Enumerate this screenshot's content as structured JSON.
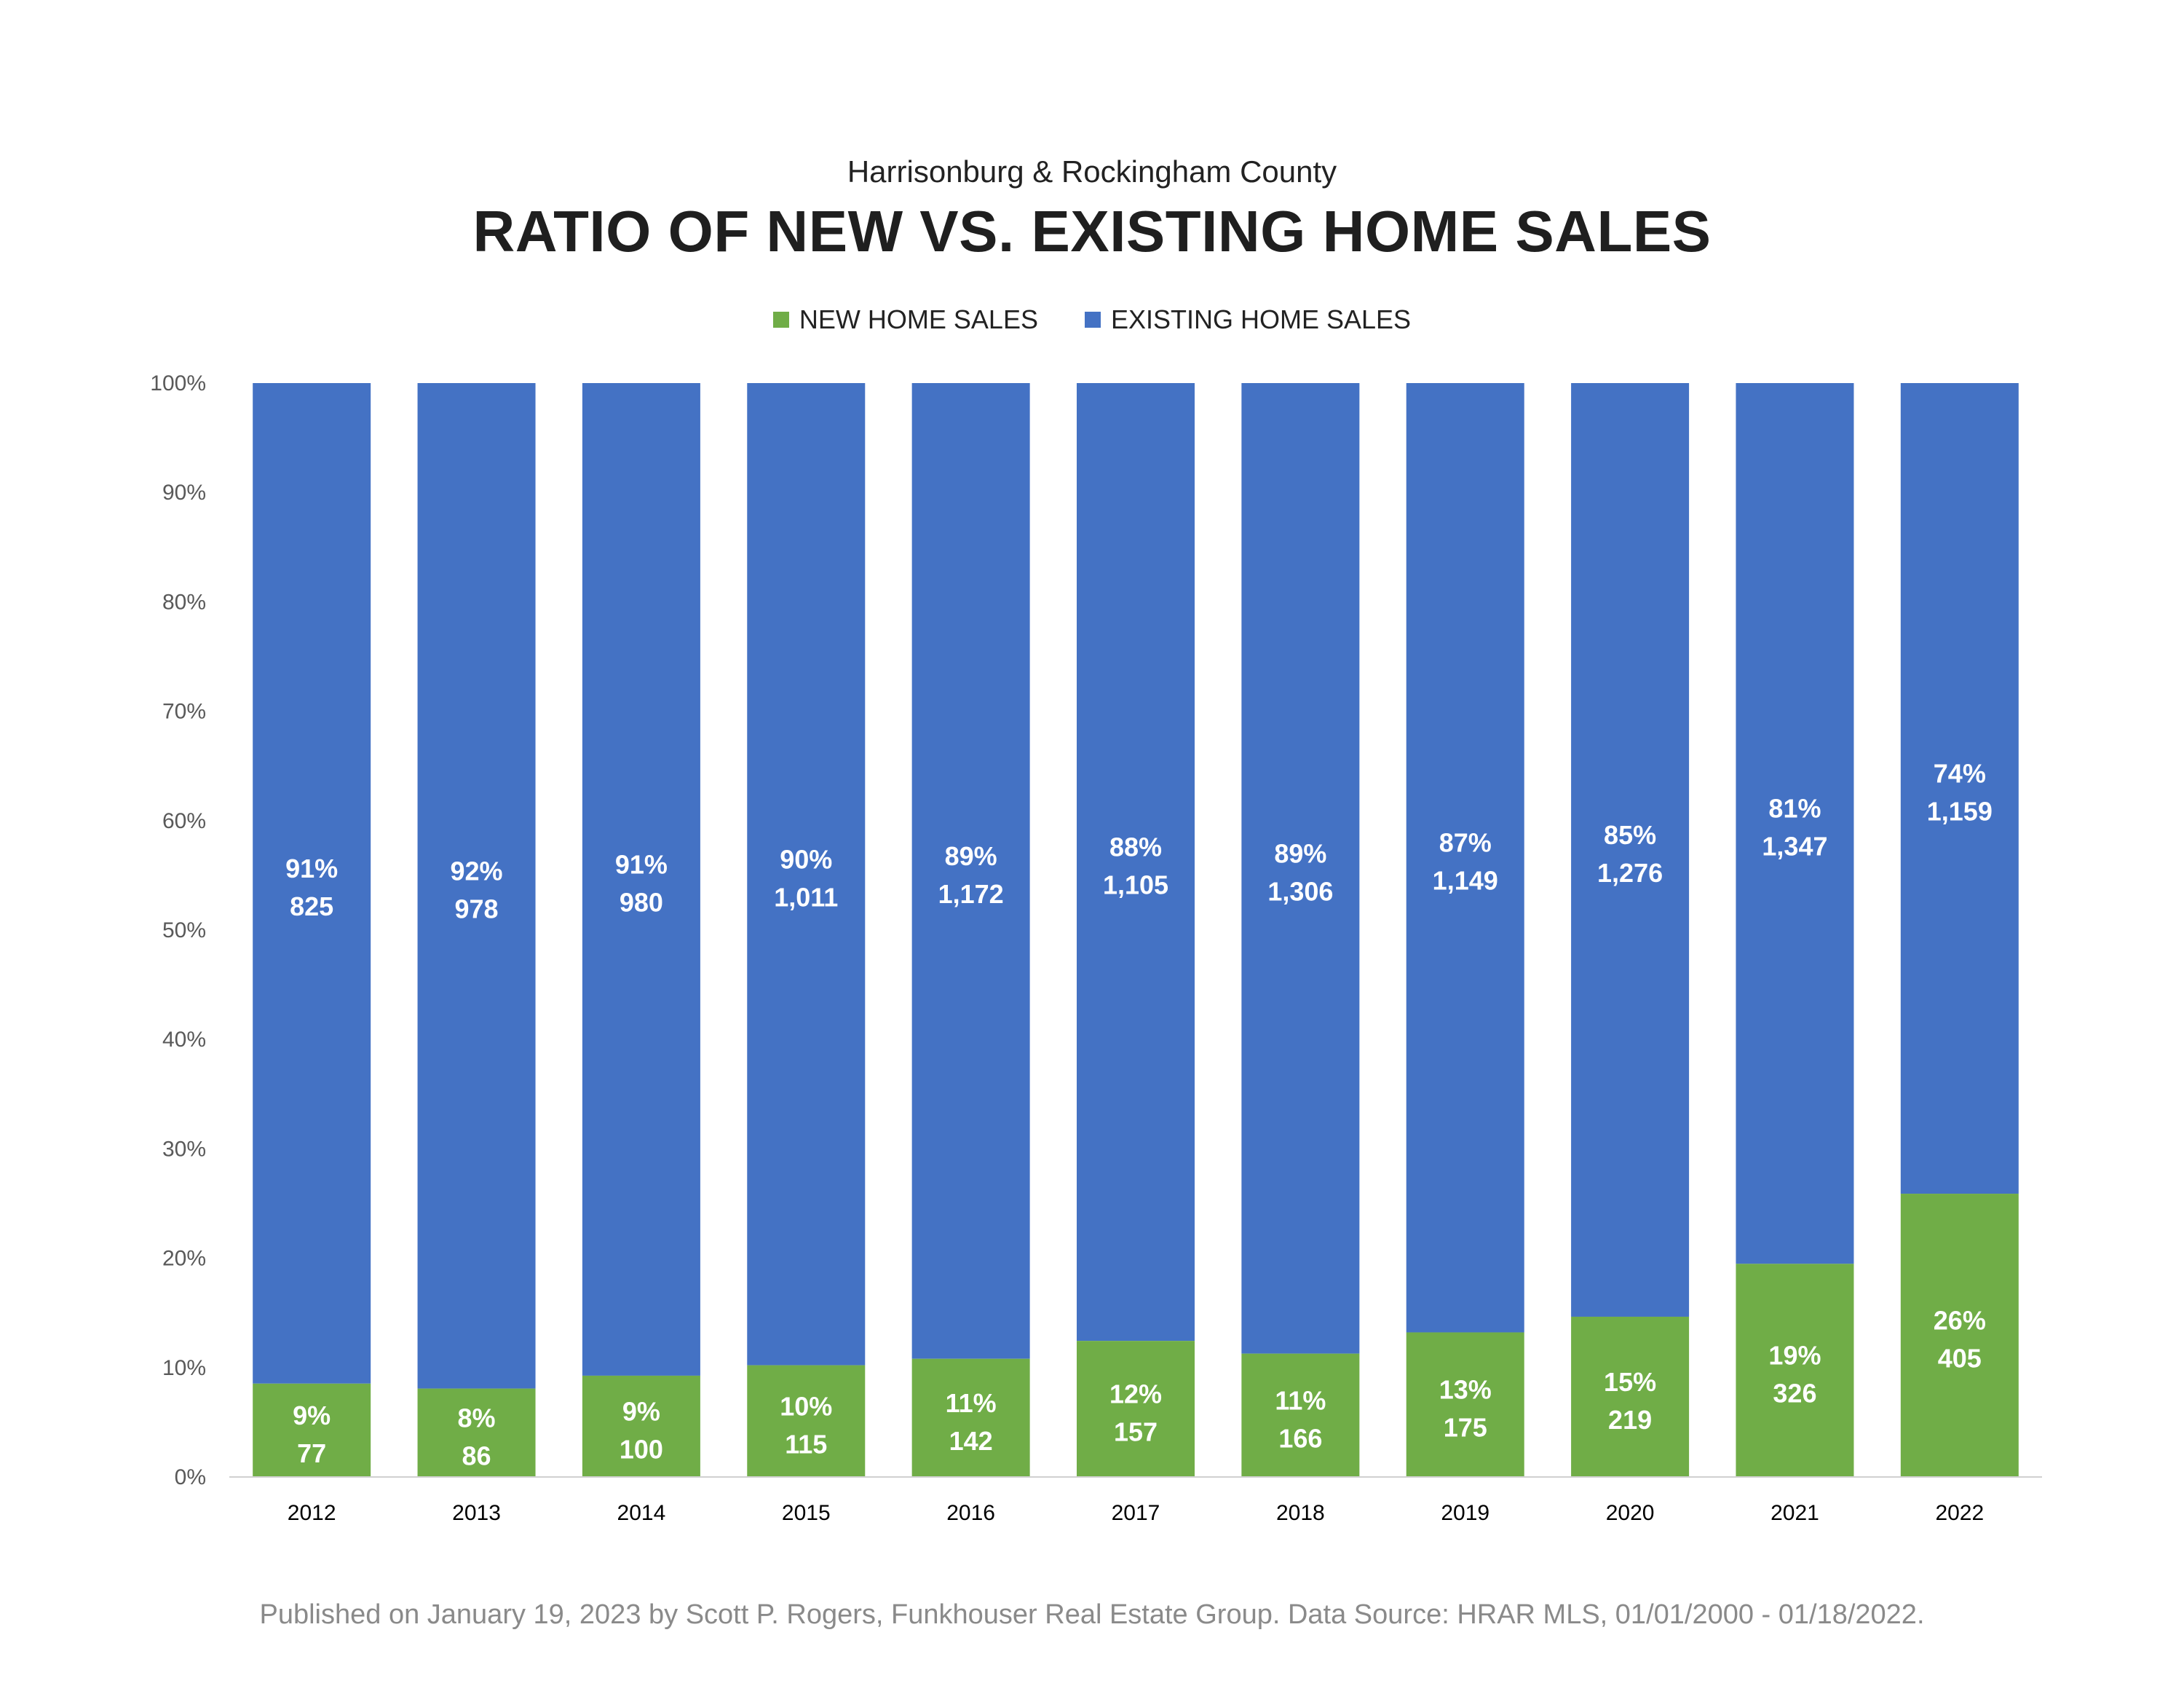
{
  "header": {
    "subtitle": "Harrisonburg & Rockingham County",
    "title": "RATIO OF NEW VS. EXISTING HOME SALES"
  },
  "legend": {
    "new_label": "NEW HOME SALES",
    "existing_label": "EXISTING HOME SALES"
  },
  "colors": {
    "new": "#70ad47",
    "existing": "#4472c4"
  },
  "footer": "Published on January 19, 2023 by Scott P. Rogers, Funkhouser Real Estate Group. Data Source: HRAR MLS, 01/01/2000 - 01/18/2022.",
  "chart_data": {
    "type": "bar",
    "stacked": "percent",
    "categories": [
      "2012",
      "2013",
      "2014",
      "2015",
      "2016",
      "2017",
      "2018",
      "2019",
      "2020",
      "2021",
      "2022"
    ],
    "series": [
      {
        "name": "NEW HOME SALES",
        "values": [
          77,
          86,
          100,
          115,
          142,
          157,
          166,
          175,
          219,
          326,
          405
        ],
        "percent_labels": [
          "9%",
          "8%",
          "9%",
          "10%",
          "11%",
          "12%",
          "11%",
          "13%",
          "15%",
          "19%",
          "26%"
        ],
        "value_labels": [
          "77",
          "86",
          "100",
          "115",
          "142",
          "157",
          "166",
          "175",
          "219",
          "326",
          "405"
        ]
      },
      {
        "name": "EXISTING HOME SALES",
        "values": [
          825,
          978,
          980,
          1011,
          1172,
          1105,
          1306,
          1149,
          1276,
          1347,
          1159
        ],
        "percent_labels": [
          "91%",
          "92%",
          "91%",
          "90%",
          "89%",
          "88%",
          "89%",
          "87%",
          "85%",
          "81%",
          "74%"
        ],
        "value_labels": [
          "825",
          "978",
          "980",
          "1,011",
          "1,172",
          "1,105",
          "1,306",
          "1,149",
          "1,276",
          "1,347",
          "1,159"
        ]
      }
    ],
    "y_ticks": [
      "0%",
      "10%",
      "20%",
      "30%",
      "40%",
      "50%",
      "60%",
      "70%",
      "80%",
      "90%",
      "100%"
    ],
    "ylim": [
      0,
      100
    ],
    "grid": false,
    "legend_position": "top-center"
  }
}
